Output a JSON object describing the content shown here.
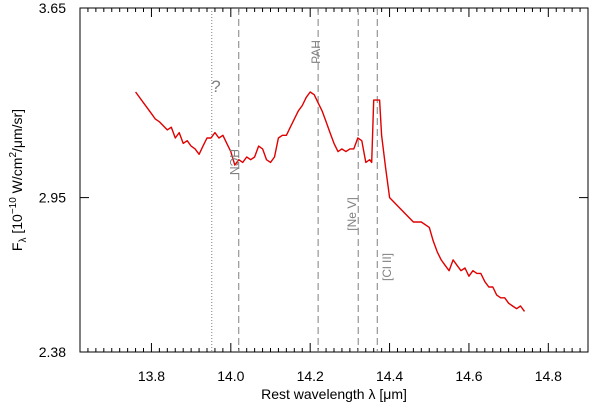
{
  "chart_data": {
    "type": "line",
    "title": "",
    "xlabel": "Rest wavelength λ [μm]",
    "ylabel": {
      "base": "F",
      "sub": "λ",
      "pre": " [10",
      "exp1": "−10",
      "mid": " W/cm",
      "exp2": "2",
      "post": "/μm/sr]"
    },
    "xlim": [
      13.62,
      14.9
    ],
    "ylim": [
      2.38,
      3.65
    ],
    "x_ticks": [
      {
        "value": 13.8,
        "label": "13.8"
      },
      {
        "value": 14.0,
        "label": "14.0"
      },
      {
        "value": 14.2,
        "label": "14.2"
      },
      {
        "value": 14.4,
        "label": "14.4"
      },
      {
        "value": 14.6,
        "label": "14.6"
      },
      {
        "value": 14.8,
        "label": "14.8"
      }
    ],
    "x_minor_step": 0.02,
    "y_ticks": [
      {
        "value": 2.38,
        "label": "2.38"
      },
      {
        "value": 2.95,
        "label": "2.95"
      },
      {
        "value": 3.65,
        "label": "3.65"
      }
    ],
    "series": [
      {
        "color": "#e00000",
        "x": [
          13.76,
          13.78,
          13.8,
          13.81,
          13.82,
          13.84,
          13.85,
          13.86,
          13.87,
          13.88,
          13.89,
          13.9,
          13.91,
          13.92,
          13.93,
          13.94,
          13.95,
          13.96,
          13.97,
          13.98,
          13.99,
          14.0,
          14.01,
          14.02,
          14.03,
          14.04,
          14.05,
          14.06,
          14.07,
          14.08,
          14.09,
          14.1,
          14.11,
          14.12,
          14.13,
          14.14,
          14.15,
          14.16,
          14.17,
          14.18,
          14.19,
          14.2,
          14.21,
          14.22,
          14.23,
          14.24,
          14.25,
          14.26,
          14.27,
          14.28,
          14.29,
          14.3,
          14.31,
          14.32,
          14.33,
          14.34,
          14.35,
          14.355,
          14.36,
          14.37,
          14.375,
          14.38,
          14.39,
          14.4,
          14.42,
          14.44,
          14.46,
          14.48,
          14.5,
          14.51,
          14.52,
          14.53,
          14.54,
          14.55,
          14.56,
          14.57,
          14.58,
          14.59,
          14.6,
          14.61,
          14.62,
          14.63,
          14.64,
          14.65,
          14.66,
          14.67,
          14.68,
          14.69,
          14.7,
          14.71,
          14.72,
          14.73,
          14.74
        ],
        "y": [
          3.34,
          3.3,
          3.26,
          3.24,
          3.23,
          3.2,
          3.21,
          3.17,
          3.19,
          3.15,
          3.16,
          3.14,
          3.13,
          3.11,
          3.14,
          3.17,
          3.17,
          3.19,
          3.17,
          3.18,
          3.15,
          3.12,
          3.07,
          3.09,
          3.08,
          3.1,
          3.09,
          3.1,
          3.14,
          3.13,
          3.09,
          3.08,
          3.1,
          3.17,
          3.18,
          3.18,
          3.21,
          3.24,
          3.27,
          3.29,
          3.32,
          3.34,
          3.33,
          3.3,
          3.27,
          3.23,
          3.19,
          3.15,
          3.12,
          3.13,
          3.12,
          3.13,
          3.13,
          3.17,
          3.16,
          3.08,
          3.09,
          3.08,
          3.31,
          3.31,
          3.31,
          3.18,
          3.06,
          2.95,
          2.92,
          2.89,
          2.86,
          2.86,
          2.84,
          2.79,
          2.75,
          2.72,
          2.7,
          2.68,
          2.72,
          2.7,
          2.68,
          2.69,
          2.66,
          2.68,
          2.67,
          2.67,
          2.64,
          2.62,
          2.62,
          2.59,
          2.58,
          2.58,
          2.56,
          2.55,
          2.54,
          2.55,
          2.53
        ]
      }
    ],
    "vlines": [
      {
        "x": 13.952,
        "style": "dotted"
      },
      {
        "x": 14.02,
        "style": "dashed"
      },
      {
        "x": 14.22,
        "style": "dashed"
      },
      {
        "x": 14.321,
        "style": "dashed"
      },
      {
        "x": 14.369,
        "style": "dashed"
      }
    ],
    "annotations": {
      "question": "?",
      "hcn": "HCN",
      "pah": "PAH",
      "nev": "[Ne V]",
      "cl": "[Cl II]"
    },
    "line_color": "#e00000",
    "annotation_color": "#808080",
    "grid": false
  }
}
